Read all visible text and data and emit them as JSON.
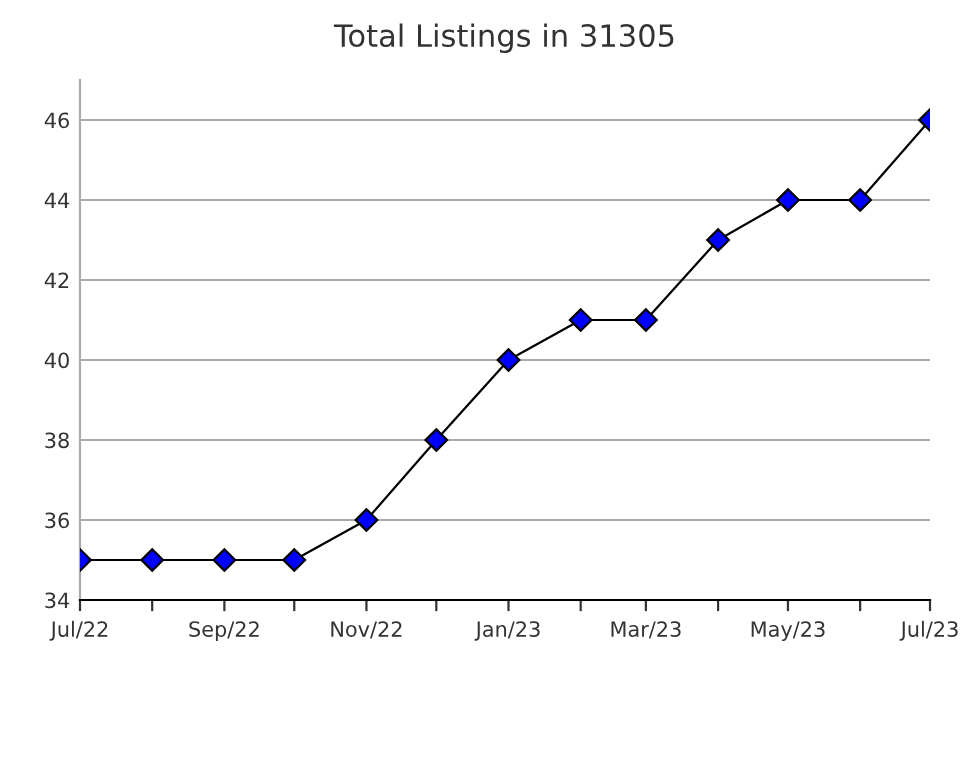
{
  "chart_data": {
    "type": "line",
    "title": "Total Listings in 31305",
    "x": [
      "2022-07",
      "2022-08",
      "2022-09",
      "2022-10",
      "2022-11",
      "2022-12",
      "2023-01",
      "2023-02",
      "2023-03",
      "2023-04",
      "2023-05",
      "2023-06",
      "2023-07"
    ],
    "series": [
      {
        "color": "#0000ff",
        "values": [
          35,
          35,
          35,
          35,
          36,
          38,
          40,
          41,
          41,
          43,
          44,
          44,
          46
        ]
      }
    ],
    "marker": "diamond",
    "line_style": "solid",
    "grid": "y",
    "xlim": [
      "2022-07",
      "2023-07"
    ],
    "xticks": [
      {
        "value": "2022-07",
        "label": "Jul/22"
      },
      {
        "value": "2022-08",
        "label": null
      },
      {
        "value": "2022-09",
        "label": "Sep/22"
      },
      {
        "value": "2022-10",
        "label": null
      },
      {
        "value": "2022-11",
        "label": "Nov/22"
      },
      {
        "value": "2022-12",
        "label": null
      },
      {
        "value": "2023-01",
        "label": "Jan/23"
      },
      {
        "value": "2023-02",
        "label": null
      },
      {
        "value": "2023-03",
        "label": "Mar/23"
      },
      {
        "value": "2023-04",
        "label": null
      },
      {
        "value": "2023-05",
        "label": "May/23"
      },
      {
        "value": "2023-06",
        "label": null
      },
      {
        "value": "2023-07",
        "label": "Jul/23"
      }
    ],
    "ylim": [
      34,
      47
    ],
    "yticks": [
      34,
      36,
      38,
      40,
      42,
      44,
      46
    ]
  }
}
